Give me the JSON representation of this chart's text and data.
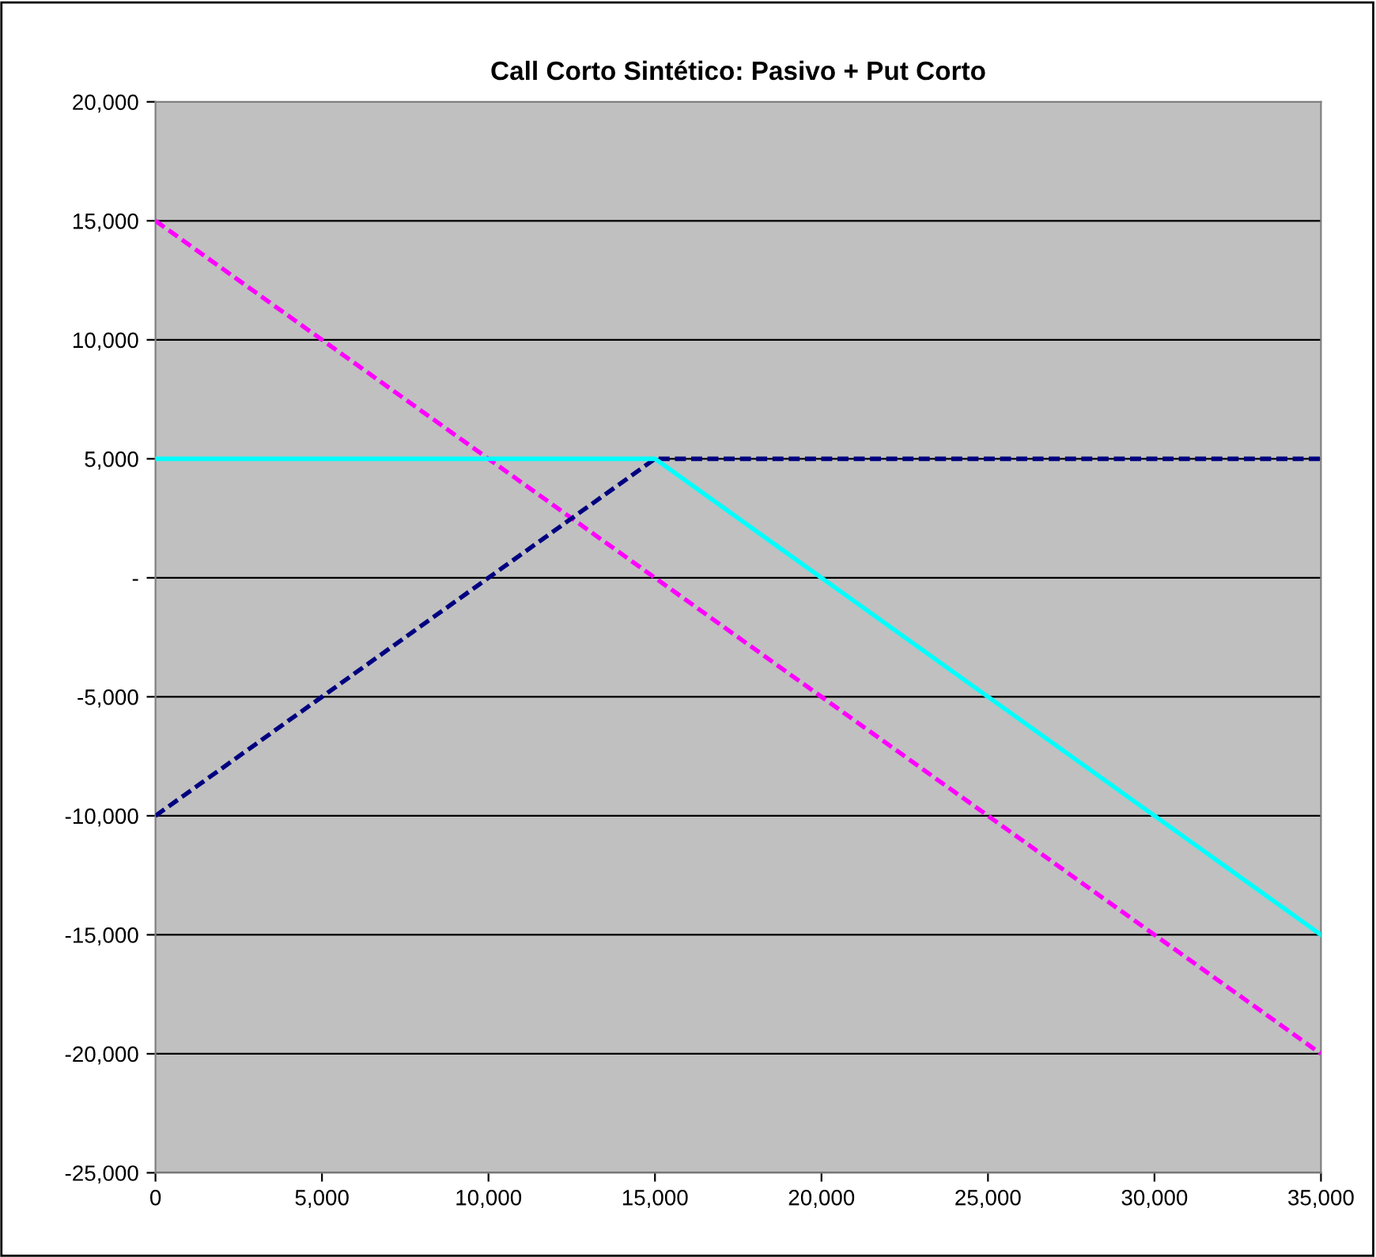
{
  "chart_data": {
    "type": "line",
    "title": "Call Corto Sintético: Pasivo + Put Corto",
    "series": [
      {
        "color": "#ff00ff",
        "line_style": "dashed",
        "x": [
          0,
          35000
        ],
        "values": [
          15000,
          -20000
        ]
      },
      {
        "color": "#000080",
        "line_style": "dashed",
        "x": [
          0,
          15000,
          35000
        ],
        "values": [
          -10000,
          5000,
          5000
        ]
      },
      {
        "color": "#00ffff",
        "line_style": "solid",
        "x": [
          0,
          15000,
          35000
        ],
        "values": [
          5000,
          5000,
          -15000
        ]
      }
    ],
    "xlim": [
      0,
      35000
    ],
    "xticks": [
      0,
      {
        "value": 5000,
        "label": "5,000"
      },
      {
        "value": 10000,
        "label": "10,000"
      },
      {
        "value": 15000,
        "label": "15,000"
      },
      {
        "value": 20000,
        "label": "20,000"
      },
      {
        "value": 25000,
        "label": "25,000"
      },
      {
        "value": 30000,
        "label": "30,000"
      },
      {
        "value": 35000,
        "label": "35,000"
      }
    ],
    "ylim": [
      -25000,
      20000
    ],
    "yticks": [
      {
        "value": -25000,
        "label": "-25,000"
      },
      {
        "value": -20000,
        "label": "-20,000"
      },
      {
        "value": -15000,
        "label": "-15,000"
      },
      {
        "value": -10000,
        "label": "-10,000"
      },
      {
        "value": -5000,
        "label": "-5,000"
      },
      {
        "value": 0,
        "label": "-"
      },
      {
        "value": 5000,
        "label": "5,000"
      },
      {
        "value": 10000,
        "label": "10,000"
      },
      {
        "value": 15000,
        "label": "15,000"
      },
      {
        "value": 20000,
        "label": "20,000"
      }
    ],
    "grid": "y",
    "legend": false,
    "marker": "none"
  }
}
